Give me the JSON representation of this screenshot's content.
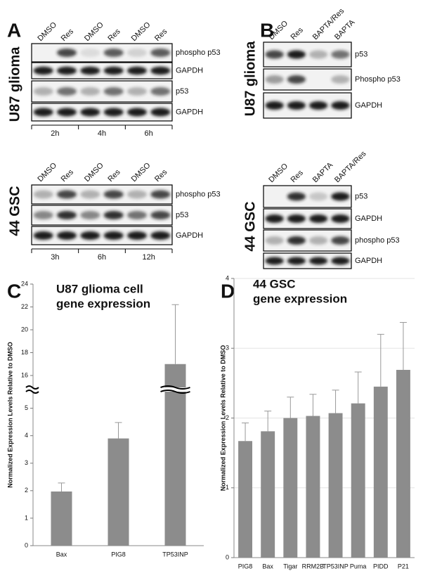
{
  "blots": [
    {
      "panel": "A",
      "side_label": "U87 glioma",
      "lanes": [
        "DMSO",
        "Res",
        "DMSO",
        "Res",
        "DMSO",
        "Res"
      ],
      "rows": [
        "phospho p53",
        "GAPDH",
        "p53",
        "GAPDH"
      ],
      "times": [
        "2h",
        "4h",
        "6h"
      ]
    },
    {
      "side_label": "44 GSC",
      "lanes": [
        "DMSO",
        "Res",
        "DMSO",
        "Res",
        "DMSO",
        "Res"
      ],
      "rows": [
        "phospho p53",
        "p53",
        "GAPDH"
      ],
      "times": [
        "3h",
        "6h",
        "12h"
      ]
    },
    {
      "panel": "B",
      "side_label": "U87 glioma",
      "lanes": [
        "DMSO",
        "Res",
        "BAPTA/Res",
        "BAPTA"
      ],
      "rows": [
        "p53",
        "Phospho p53",
        "GAPDH"
      ]
    },
    {
      "side_label": "44 GSC",
      "lanes": [
        "DMSO",
        "Res",
        "BAPTA",
        "BAPTA/Res"
      ],
      "rows": [
        "p53",
        "GAPDH",
        "phospho p53",
        "GAPDH"
      ]
    }
  ],
  "chart_data": [
    {
      "type": "bar",
      "panel": "C",
      "title": [
        "U87 glioma cell",
        "gene expression"
      ],
      "y_label": "Normalized Expression Levels Relative to DMSO",
      "categories": [
        "Bax",
        "PIG8",
        "TP53INP"
      ],
      "values": [
        1.97,
        3.9,
        17.0
      ],
      "errors": [
        0.31,
        0.58,
        5.2
      ],
      "color": "#8c8c8c",
      "ylim": [
        0,
        24
      ],
      "axis_break": [
        5.5,
        15.2
      ],
      "yticks": [
        0,
        1,
        2,
        3,
        4,
        5,
        16,
        18,
        20,
        22,
        24
      ],
      "grid": false
    },
    {
      "type": "bar",
      "panel": "D",
      "title": [
        "44 GSC",
        "gene expression"
      ],
      "y_label": "Normalized Expression Levels Relative to DMSO",
      "categories": [
        "PIG8",
        "Bax",
        "Tigar",
        "RRM2B",
        "TP53INP",
        "Puma",
        "PIDD",
        "P21"
      ],
      "values": [
        1.67,
        1.81,
        2.0,
        2.03,
        2.07,
        2.21,
        2.45,
        2.69
      ],
      "errors": [
        0.26,
        0.29,
        0.3,
        0.31,
        0.33,
        0.45,
        0.75,
        0.68
      ],
      "color": "#8c8c8c",
      "ylim": [
        0,
        4
      ],
      "yticks": [
        0,
        1,
        2,
        3,
        4
      ],
      "grid": true
    }
  ]
}
